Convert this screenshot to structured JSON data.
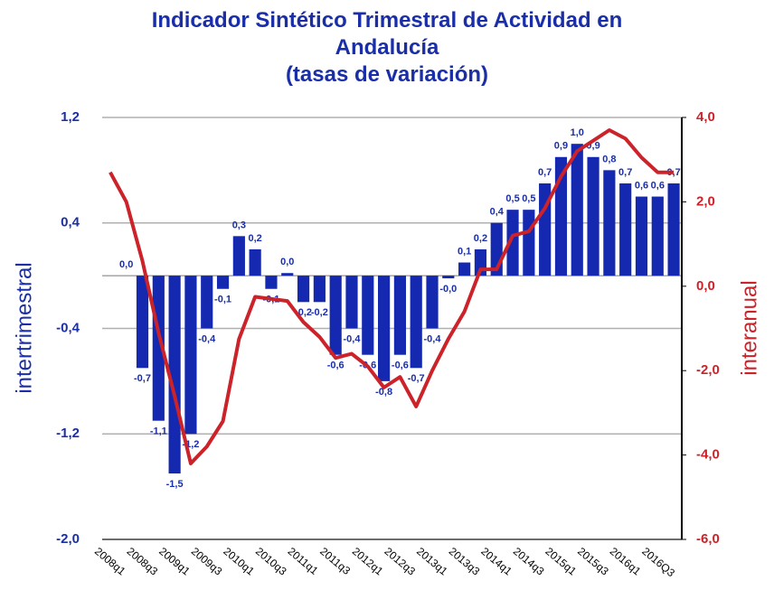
{
  "chart_data": {
    "type": "bar-line",
    "title": "Indicador Sintético Trimestral de Actividad en Andalucía",
    "subtitle": "(tasas de variación)",
    "y_label": "intertrimestral",
    "y2_label": "interanual",
    "categories": [
      "2008q1",
      null,
      "2008q3",
      null,
      "2009q1",
      null,
      "2009q3",
      null,
      "2010q1",
      null,
      "2010q3",
      null,
      "2011q1",
      null,
      "2011q3",
      null,
      "2012q1",
      null,
      "2012q3",
      null,
      "2013q1",
      null,
      "2013q3",
      null,
      "2014q1",
      null,
      "2014q3",
      null,
      "2015q1",
      null,
      "2015q3",
      null,
      "2016q1",
      null,
      "2016Q3",
      null
    ],
    "series": [
      {
        "name": "intertrimestral",
        "type": "bar",
        "color": "#1428b0",
        "values": [
          null,
          0,
          -0.7,
          -1.1,
          -1.5,
          -1.2,
          -0.4,
          -0.1,
          0.3,
          0.2,
          -0.1,
          0.02,
          -0.2,
          -0.2,
          -0.6,
          -0.4,
          -0.6,
          -0.8,
          -0.6,
          -0.7,
          -0.4,
          -0.02,
          0.1,
          0.2,
          0.4,
          0.5,
          0.5,
          0.7,
          0.9,
          1.0,
          0.9,
          0.8,
          0.7,
          0.6,
          0.6,
          0.7
        ],
        "value_labels": [
          null,
          "0,0",
          "-0,7",
          "-1,1",
          "-1,5",
          "-1,2",
          "-0,4",
          "-0,1",
          "0,3",
          "0,2",
          "-0,1",
          "0,0",
          "-0,2",
          "-0,2",
          "-0,6",
          "-0,4",
          "-0,6",
          "-0,8",
          "-0,6",
          "-0,7",
          "-0,4",
          "-0,0",
          "0,1",
          "0,2",
          "0,4",
          "0,5",
          "0,5",
          "0,7",
          "0,9",
          "1,0",
          "0,9",
          "0,8",
          "0,7",
          "0,6",
          "0,6",
          "0,7"
        ]
      },
      {
        "name": "interanual",
        "type": "line",
        "axis": "y2",
        "color": "#cc2229",
        "values": [
          2.7,
          2.0,
          0.6,
          -1.1,
          -2.6,
          -4.2,
          -3.8,
          -3.2,
          -1.25,
          -0.25,
          -0.3,
          -0.35,
          -0.85,
          -1.2,
          -1.7,
          -1.6,
          -1.9,
          -2.4,
          -2.15,
          -2.85,
          -2.0,
          -1.25,
          -0.6,
          0.4,
          0.4,
          1.2,
          1.3,
          1.85,
          2.6,
          3.2,
          3.45,
          3.7,
          3.5,
          3.05,
          2.7,
          2.7
        ]
      }
    ],
    "ylim": [
      -2,
      1.2
    ],
    "yticks": [
      {
        "value": -2,
        "label": "-2,0"
      },
      {
        "value": -1.2,
        "label": "-1,2"
      },
      {
        "value": -0.4,
        "label": "-0,4"
      },
      {
        "value": 0.4,
        "label": "0,4"
      },
      {
        "value": 1.2,
        "label": "1,2"
      }
    ],
    "y2lim": [
      -6,
      4
    ],
    "y2ticks": [
      {
        "value": -6,
        "label": "-6,0"
      },
      {
        "value": -4,
        "label": "-4,0"
      },
      {
        "value": -2,
        "label": "-2,0"
      },
      {
        "value": 0,
        "label": "0,0"
      },
      {
        "value": 2,
        "label": "2,0"
      },
      {
        "value": 4,
        "label": "4,0"
      }
    ],
    "grid": true
  }
}
